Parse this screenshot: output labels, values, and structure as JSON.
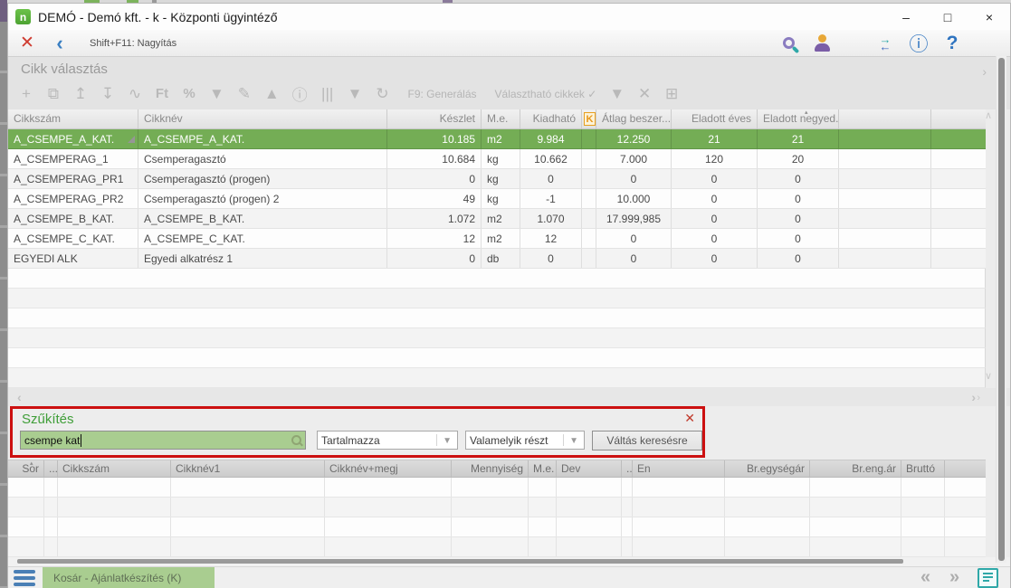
{
  "window": {
    "title": "DEMÓ - Demó kft. - k - Központi ügyintéző",
    "logo_letter": "n",
    "controls": {
      "minimize": "–",
      "maximize": "□",
      "close": "×"
    }
  },
  "glyphs": {
    "close_form": "✕",
    "back": "‹",
    "panel_chevron": "›",
    "scroll_left": "‹",
    "scroll_right": "›",
    "scroll_up": "∧",
    "scroll_down": "∨",
    "prev": "«",
    "next": "»",
    "check": "✓",
    "help": "?",
    "info": "ⓘ",
    "filter_close": "✕",
    "dropdown_arrow": "▼"
  },
  "toolbar": {
    "shortcut_label": "Shift+F11: Nagyítás",
    "right_icons": [
      "search",
      "user",
      "modules",
      "swap",
      "info",
      "help"
    ]
  },
  "panel": {
    "title": "Cikk választás"
  },
  "icon_toolbar": {
    "icons_before": [
      "add",
      "copy",
      "move-top",
      "move-bottom",
      "chart",
      "currency",
      "percent",
      "filter-column",
      "brush",
      "collapse",
      "info",
      "columns",
      "filter",
      "refresh"
    ],
    "currency_label": "Ft",
    "percent_label": "%",
    "generate_label": "F9: Generálás",
    "selectable_label": "Választható cikkek",
    "icons_after": [
      "filter-rows",
      "filter-clear",
      "filter-add"
    ]
  },
  "table": {
    "columns": [
      "Cikkszám",
      "Cikknév",
      "Készlet",
      "M.e.",
      "Kiadható",
      "K",
      "Átlag beszer...",
      "Eladott éves",
      "Eladott negyed..."
    ],
    "selected_row": 0,
    "rows": [
      [
        "A_CSEMPE_A_KAT.",
        "A_CSEMPE_A_KAT.",
        "10.185",
        "m2",
        "9.984",
        "",
        "12.250",
        "21",
        "21"
      ],
      [
        "A_CSEMPERAG_1",
        "Csemperagasztó",
        "10.684",
        "kg",
        "10.662",
        "",
        "7.000",
        "120",
        "20"
      ],
      [
        "A_CSEMPERAG_PR1",
        "Csemperagasztó (progen)",
        "0",
        "kg",
        "0",
        "",
        "0",
        "0",
        "0"
      ],
      [
        "A_CSEMPERAG_PR2",
        "Csemperagasztó (progen) 2",
        "49",
        "kg",
        "-1",
        "",
        "10.000",
        "0",
        "0"
      ],
      [
        "A_CSEMPE_B_KAT.",
        "A_CSEMPE_B_KAT.",
        "1.072",
        "m2",
        "1.070",
        "",
        "17.999,985",
        "0",
        "0"
      ],
      [
        "A_CSEMPE_C_KAT.",
        "A_CSEMPE_C_KAT.",
        "12",
        "m2",
        "12",
        "",
        "0",
        "0",
        "0"
      ],
      [
        "EGYEDI ALK",
        "Egyedi alkatrész 1",
        "0",
        "db",
        "0",
        "",
        "0",
        "0",
        "0"
      ]
    ]
  },
  "filter": {
    "title": "Szűkítés",
    "search_value": "csempe kat",
    "match_mode": "Tartalmazza",
    "part_mode": "Valamelyik részt",
    "switch_button": "Váltás keresésre"
  },
  "basket_table": {
    "columns": [
      "Sor",
      "...",
      "Cikkszám",
      "Cikknév1",
      "Cikknév+megj",
      "Mennyiség",
      "M.e.",
      "Dev",
      "...",
      "En",
      "Br.egységár",
      "Br.eng.ár",
      "Bruttó"
    ]
  },
  "statusbar": {
    "tab_label": "Kosár - Ajánlatkészítés (K)"
  },
  "colors": {
    "selection_green": "#74ad55",
    "input_green": "#a9cd90",
    "filter_border_red": "#cc1010",
    "filter_title_green": "#3f9e38",
    "icon_blue": "#2f74c0",
    "icon_teal": "#2fa8a8"
  }
}
